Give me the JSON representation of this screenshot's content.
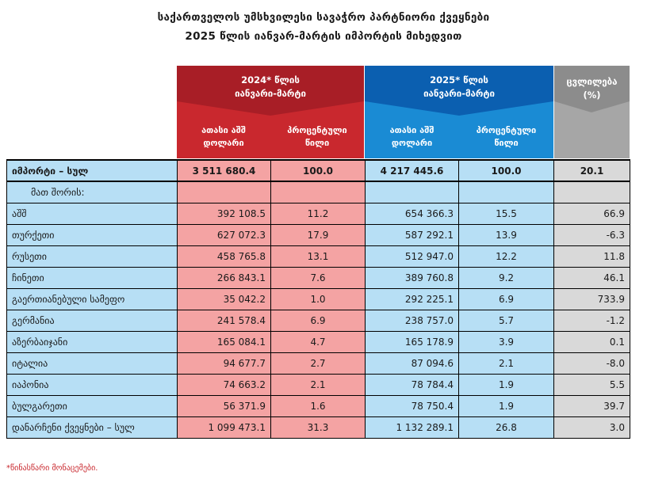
{
  "title_line1": "საქართველოს უმსხვილესი სავაჭრო პარტნიორი ქვეყნები",
  "title_line2": "2025 წლის იანვარ-მარტის იმპორტის მიხედვით",
  "header": {
    "group_2024": {
      "line1": "2024* წლის",
      "line2": "იანვარი-მარტი"
    },
    "group_2025": {
      "line1": "2025* წლის",
      "line2": "იანვარი-მარტი"
    },
    "change": {
      "line1": "ცვლილება",
      "line2": "(%)"
    },
    "col_thousand_usd": {
      "line1": "ათასი აშშ",
      "line2": "დოლარი"
    },
    "col_percent_share": {
      "line1": "პროცენტული",
      "line2": "წილი"
    }
  },
  "total_row": {
    "label": "იმპორტი – სულ",
    "v2024": "3 511 680.4",
    "s2024": "100.0",
    "v2025": "4 217 445.6",
    "s2025": "100.0",
    "change": "20.1"
  },
  "subheader_label": "მათ შორის:",
  "rows": [
    {
      "label": "აშშ",
      "v2024": "392 108.5",
      "s2024": "11.2",
      "v2025": "654 366.3",
      "s2025": "15.5",
      "change": "66.9"
    },
    {
      "label": "თურქეთი",
      "v2024": "627 072.3",
      "s2024": "17.9",
      "v2025": "587 292.1",
      "s2025": "13.9",
      "change": "-6.3"
    },
    {
      "label": "რუსეთი",
      "v2024": "458 765.8",
      "s2024": "13.1",
      "v2025": "512 947.0",
      "s2025": "12.2",
      "change": "11.8"
    },
    {
      "label": "ჩინეთი",
      "v2024": "266 843.1",
      "s2024": "7.6",
      "v2025": "389 760.8",
      "s2025": "9.2",
      "change": "46.1"
    },
    {
      "label": "გაერთიანებული სამეფო",
      "v2024": "35 042.2",
      "s2024": "1.0",
      "v2025": "292 225.1",
      "s2025": "6.9",
      "change": "733.9"
    },
    {
      "label": "გერმანია",
      "v2024": "241 578.4",
      "s2024": "6.9",
      "v2025": "238 757.0",
      "s2025": "5.7",
      "change": "-1.2"
    },
    {
      "label": "აზერბაიჯანი",
      "v2024": "165 084.1",
      "s2024": "4.7",
      "v2025": "165 178.9",
      "s2025": "3.9",
      "change": "0.1"
    },
    {
      "label": "იტალია",
      "v2024": "94 677.7",
      "s2024": "2.7",
      "v2025": "87 094.6",
      "s2025": "2.1",
      "change": "-8.0"
    },
    {
      "label": "იაპონია",
      "v2024": "74 663.2",
      "s2024": "2.1",
      "v2025": "78 784.4",
      "s2025": "1.9",
      "change": "5.5"
    },
    {
      "label": "ბულგარეთი",
      "v2024": "56 371.9",
      "s2024": "1.6",
      "v2025": "78 750.4",
      "s2025": "1.9",
      "change": "39.7"
    },
    {
      "label": "დანარჩენი ქვეყნები – სულ",
      "v2024": "1 099 473.1",
      "s2024": "31.3",
      "v2025": "1 132 289.1",
      "s2025": "26.8",
      "change": "3.0"
    }
  ],
  "footnote": "*წინასწარი მონაცემები.",
  "colors": {
    "red": "#c9282e",
    "red_dark": "#a81e26",
    "blue": "#1a8bd4",
    "blue_dark": "#0b5fb0",
    "gray": "#a6a6a6",
    "pink_cell": "#f4a3a3",
    "lightblue_cell": "#b7dff5",
    "gray_cell": "#d9d9d9"
  }
}
